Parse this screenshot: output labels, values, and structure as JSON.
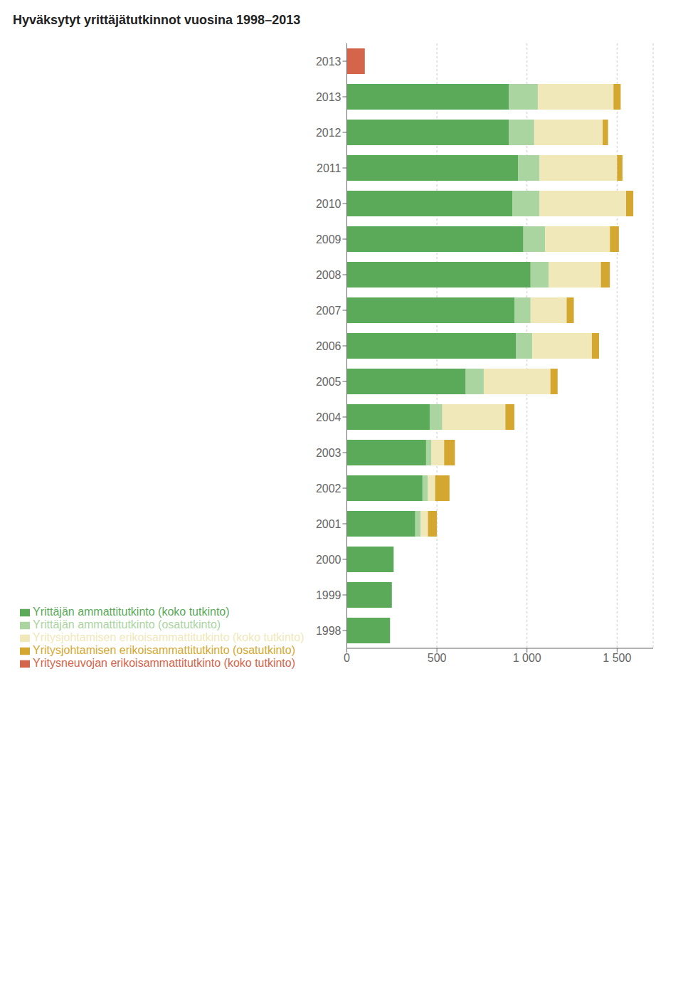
{
  "chart_data": {
    "type": "bar",
    "orientation": "horizontal",
    "stacked": true,
    "title": "Hyväksytyt yrittäjätutkinnot vuosina 1998–2013",
    "categories": [
      "1998",
      "1999",
      "2000",
      "2001",
      "2002",
      "2003",
      "2004",
      "2005",
      "2006",
      "2007",
      "2008",
      "2009",
      "2010",
      "2011",
      "2012",
      "2013",
      "2013"
    ],
    "series": [
      {
        "name": "Yrittäjän ammattitutkinto (koko tutkinto)",
        "color": "#5aaa5a",
        "values": [
          240,
          250,
          260,
          380,
          420,
          440,
          460,
          660,
          940,
          930,
          1020,
          980,
          920,
          950,
          900,
          900,
          0
        ]
      },
      {
        "name": "Yrittäjän ammattitutkinto (osatutkinto)",
        "color": "#aad4a0",
        "values": [
          0,
          0,
          0,
          30,
          30,
          30,
          70,
          100,
          90,
          90,
          100,
          120,
          150,
          120,
          140,
          160,
          0
        ]
      },
      {
        "name": "Yritysjohtamisen erikoisammattitutkinto (koko tutkinto)",
        "color": "#f0e8b8",
        "values": [
          0,
          0,
          0,
          40,
          40,
          70,
          350,
          370,
          330,
          200,
          290,
          360,
          480,
          430,
          380,
          420,
          0
        ]
      },
      {
        "name": "Yritysjohtamisen erikoisammattitutkinto (osatutkinto)",
        "color": "#d4a830",
        "values": [
          0,
          0,
          0,
          50,
          80,
          60,
          50,
          40,
          40,
          40,
          50,
          50,
          40,
          30,
          30,
          40,
          0
        ]
      },
      {
        "name": "Yritysneuvojan erikoisammattitutkinto (koko tutkinto)",
        "color": "#d4654a",
        "values": [
          0,
          0,
          0,
          0,
          0,
          0,
          0,
          0,
          0,
          0,
          0,
          0,
          0,
          0,
          0,
          0,
          100
        ]
      }
    ],
    "xlim": [
      0,
      1700
    ],
    "xticks": [
      0,
      500,
      {
        "value": 1000,
        "label": "1 000"
      },
      {
        "value": 1500,
        "label": "1 500"
      }
    ],
    "grid": true,
    "legend": "bottom left"
  }
}
